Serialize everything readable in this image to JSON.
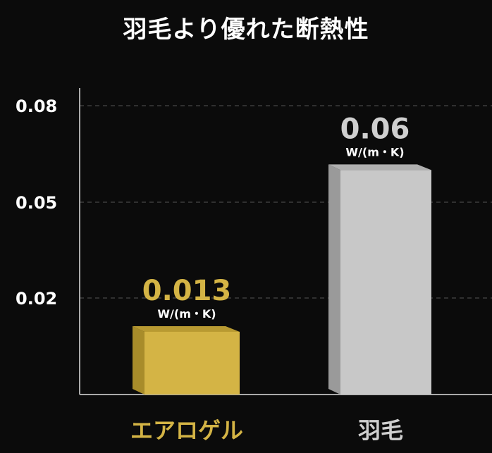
{
  "chart_data": {
    "type": "bar",
    "title": "羽毛より優れた断熱性",
    "categories": [
      "エアロゲル",
      "羽毛"
    ],
    "values": [
      0.013,
      0.06
    ],
    "data_labels": [
      "0.013",
      "0.06"
    ],
    "unit": "W/(m・K)",
    "yticks": [
      "0.08",
      "0.05",
      "0.02"
    ],
    "ytick_values": [
      0.08,
      0.05,
      0.02
    ],
    "ylim": [
      0,
      0.08
    ],
    "grid": true,
    "colors": {
      "aerogel": "#d4b445",
      "feather": "#c8c8c8",
      "background": "#0b0b0b"
    }
  }
}
